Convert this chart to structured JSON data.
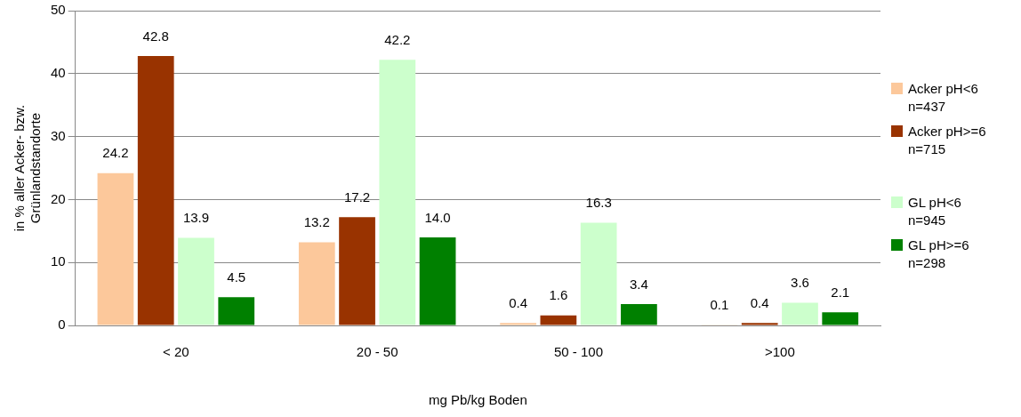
{
  "chart_data": {
    "type": "bar",
    "xlabel": "mg Pb/kg Boden",
    "ylabel": "in % aller Acker- bzw.\nGrünlandstandorte",
    "categories": [
      "< 20",
      "20 - 50",
      "50 - 100",
      ">100"
    ],
    "series": [
      {
        "name": "Acker pH<6\nn=437",
        "color": "#fcc89b",
        "values": [
          24.2,
          13.2,
          0.4,
          0.1
        ],
        "value_labels": [
          "24.2",
          "13.2",
          "0.4",
          "0.1"
        ]
      },
      {
        "name": "Acker pH>=6\nn=715",
        "color": "#993300",
        "values": [
          42.8,
          17.2,
          1.6,
          0.4
        ],
        "value_labels": [
          "42.8",
          "17.2",
          "1.6",
          "0.4"
        ]
      },
      {
        "name": "GL pH<6\nn=945",
        "color": "#ccffcc",
        "values": [
          13.9,
          42.2,
          16.3,
          3.6
        ],
        "value_labels": [
          "13.9",
          "42.2",
          "16.3",
          "3.6"
        ]
      },
      {
        "name": "GL pH>=6\nn=298",
        "color": "#008000",
        "values": [
          4.5,
          14.0,
          3.4,
          2.1
        ],
        "value_labels": [
          "4.5",
          "14.0",
          "3.4",
          "2.1"
        ]
      }
    ],
    "ylim": [
      0,
      50
    ],
    "yticks": [
      0,
      10,
      20,
      30,
      40,
      50
    ],
    "grid": "y",
    "legend": "right"
  }
}
